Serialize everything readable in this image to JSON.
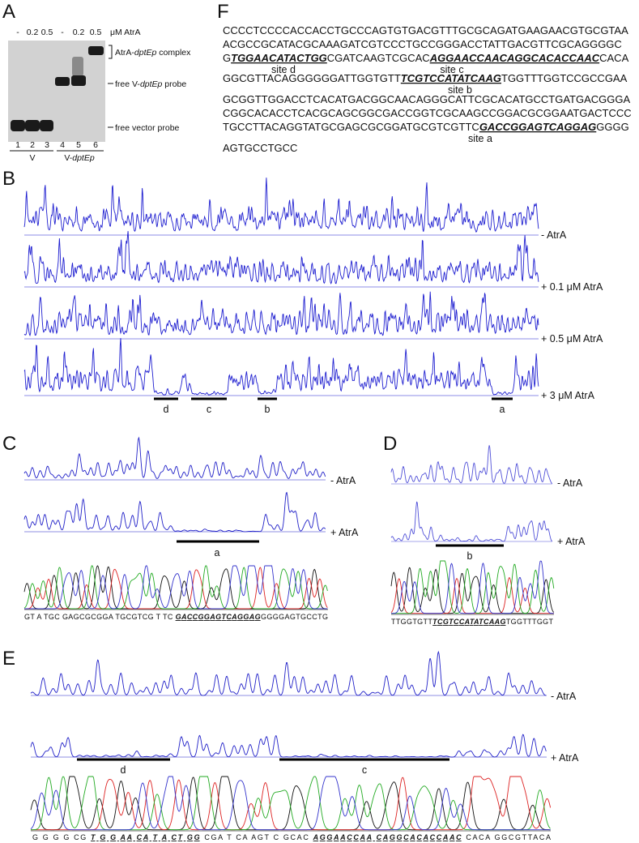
{
  "panel_A": {
    "letter": "A",
    "concentrations": [
      "-",
      "0.2",
      "0.5",
      "-",
      "0.2",
      "0.5"
    ],
    "unit": "μM  AtrA",
    "band_labels": [
      [
        "AtrA-",
        {
          "text": "dptEp",
          "italic": true
        },
        " complex"
      ],
      [
        "free V-",
        {
          "text": "dptEp",
          "italic": true
        },
        " probe"
      ],
      [
        "free vector probe"
      ]
    ],
    "lanes": [
      "1",
      "2",
      "3",
      "4",
      "5",
      "6"
    ],
    "groups": [
      [
        "V"
      ],
      [
        "V-",
        {
          "text": "dptEp",
          "italic": true
        }
      ]
    ]
  },
  "panel_B": {
    "letter": "B",
    "conditions": [
      "- AtrA",
      "+ 0.1 μM AtrA",
      "+ 0.5 μM AtrA",
      "+ 3 μM AtrA"
    ],
    "sites": [
      "d",
      "c",
      "b",
      "a"
    ]
  },
  "panel_C": {
    "letter": "C",
    "conditions": [
      "- AtrA",
      "+ AtrA"
    ],
    "site": "a",
    "sequence": [
      "GT A TGC GAGCGCGGA TGCGTCG T TC ",
      {
        "text": "GACCGGAGTCAGGAG",
        "emphasis": true
      },
      "GGGGAGTGCCTG"
    ]
  },
  "panel_D": {
    "letter": "D",
    "conditions": [
      "- AtrA",
      "+ AtrA"
    ],
    "site": "b",
    "sequence": [
      "TTGGTGTT",
      {
        "text": "TCGTCCATATCAAG",
        "emphasis": true
      },
      "TGGTTTGGT"
    ]
  },
  "panel_E": {
    "letter": "E",
    "conditions": [
      "- AtrA",
      "+ AtrA"
    ],
    "sites": [
      "d",
      "c"
    ],
    "sequence": [
      "G G G G CG ",
      {
        "text": "T G G AA CA T A CT GG",
        "emphasis": true
      },
      " CGA T CA AGT C GCAC ",
      {
        "text": "AGGAACCAA CAGGCACACCAAC",
        "emphasis": true
      },
      " CACA GGCGTTACA"
    ]
  },
  "panel_F": {
    "letter": "F",
    "lines": [
      [
        "CCCCTCCCCACCACCTGCCCAGTGTGACGTTTGCGCAGATGAAGAACGTGCGTAA"
      ],
      [
        "ACGCCGCATACGCAAAGATCGTCCCTGCCGGGACCTATTGACGTTCGCAGGGGC"
      ],
      [
        "G",
        {
          "text": "TGGAACATACTGG",
          "emphasis": true
        },
        "CGATCAAGTCGCAC",
        {
          "text": "AGGAACCAACAGGCACACCAAC",
          "emphasis": true
        },
        "CACA"
      ],
      [
        "GGCGTTACAGGGGGGATTGGTGTT",
        {
          "text": "TCGTCCATATCAAG",
          "emphasis": true
        },
        "TGGTTTGGTCCGCCGAA"
      ],
      [
        "GCGGTTGGACCTCACATGACGGCAACAGGGCATTCGCACATGCCTGATGACGGGA"
      ],
      [
        "CGGCACACCTCACGCAGCGGCGACCGGTCGCAAGCCGGACGCGGAATGACTCCC"
      ],
      [
        "TGCCTTACAGGTATGCGAGCGCGGATGCGTCGTTC",
        {
          "text": "GACCGGAGTCAGGAG",
          "emphasis": true
        },
        "GGGG"
      ],
      [
        "AGTGCCTGCC"
      ]
    ],
    "site_labels": [
      "site d",
      "site c",
      "site b",
      "site a"
    ]
  }
}
